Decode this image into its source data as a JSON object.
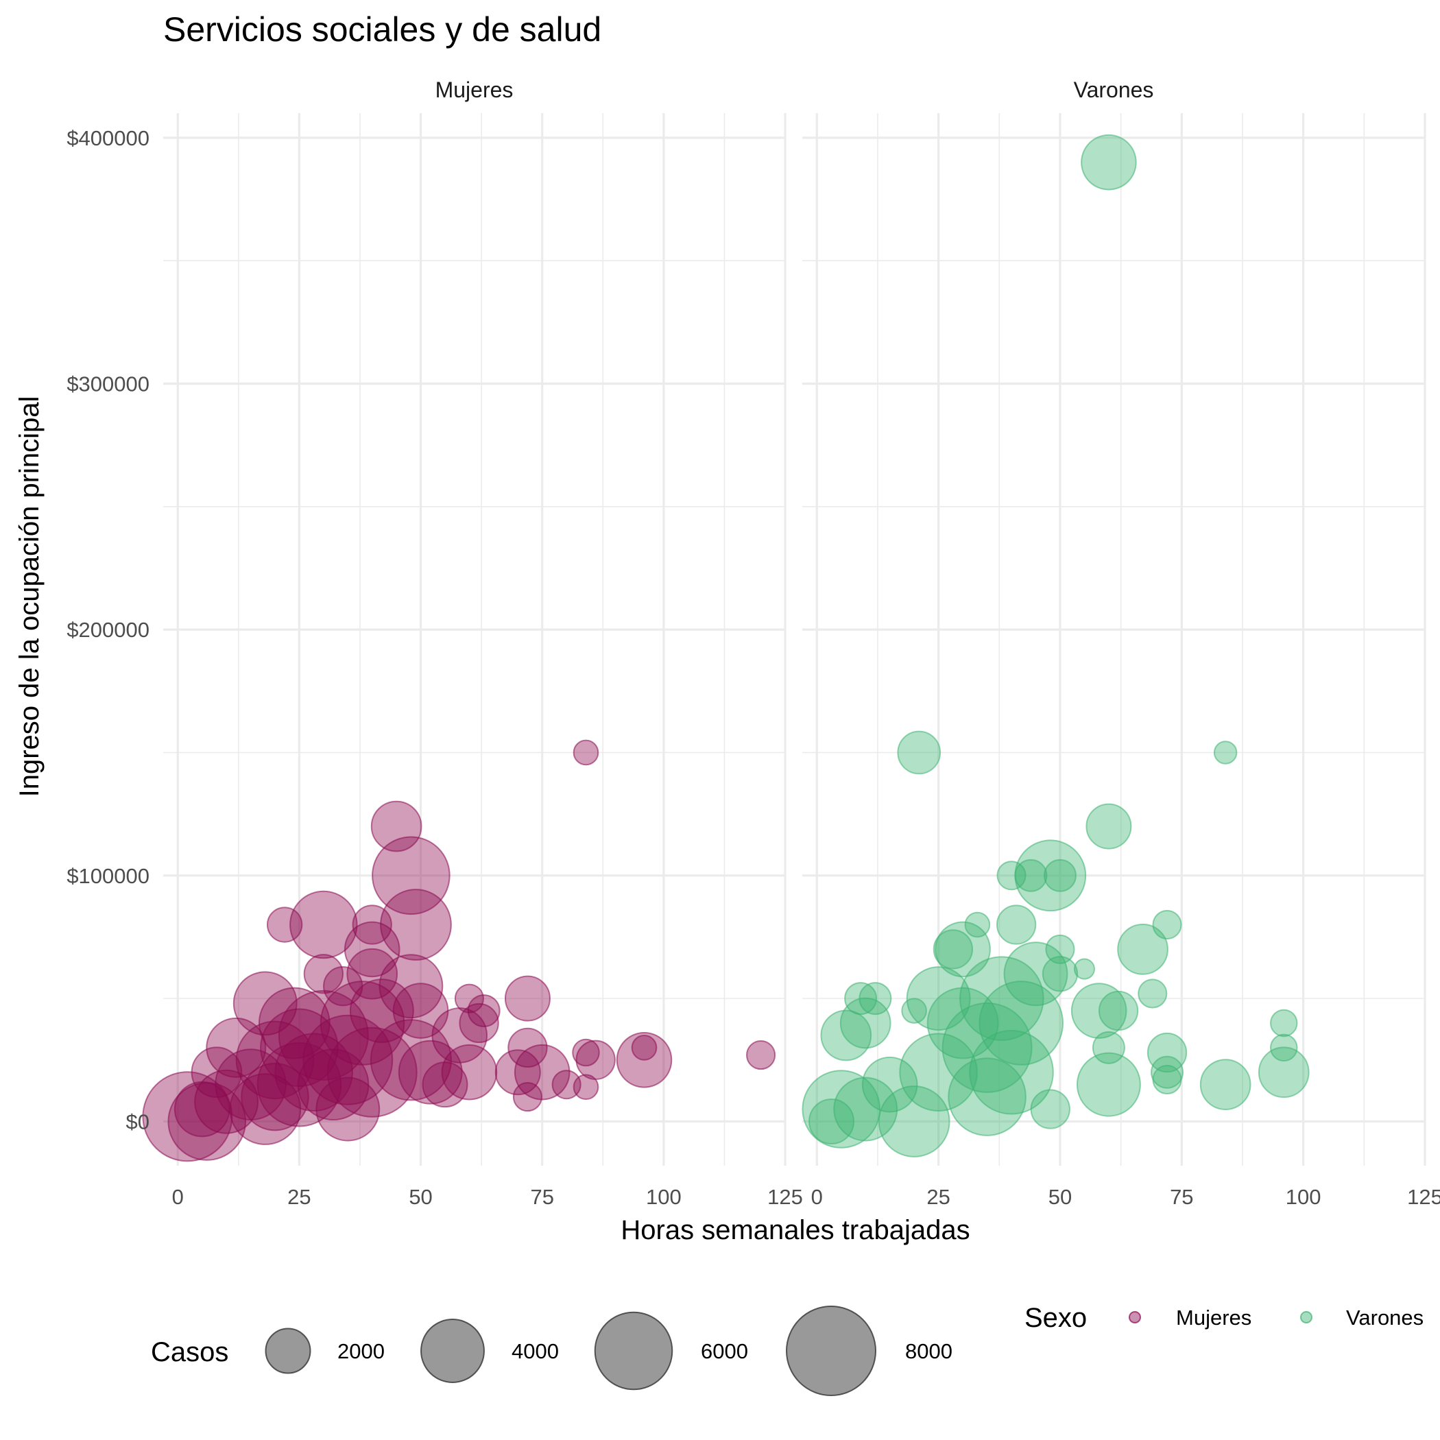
{
  "chart_data": {
    "type": "scatter",
    "title": "Servicios sociales y de salud",
    "xlabel": "Horas semanales trabajadas",
    "ylabel": "Ingreso de la ocupación principal",
    "x_ticks": [
      0,
      25,
      50,
      75,
      100,
      125
    ],
    "y_ticks": [
      0,
      100000,
      200000,
      300000,
      400000
    ],
    "y_tick_labels": [
      "$0",
      "$100000",
      "$200000",
      "$300000",
      "$400000"
    ],
    "xlim": [
      -3,
      125
    ],
    "ylim": [
      -18000,
      410000
    ],
    "grid": true,
    "facets": [
      "Mujeres",
      "Varones"
    ],
    "size_legend": {
      "title": "Casos",
      "breaks": [
        2000,
        4000,
        6000,
        8000
      ],
      "labels": [
        "2000",
        "4000",
        "6000",
        "8000"
      ]
    },
    "color_legend": {
      "title": "Sexo",
      "entries": [
        {
          "label": "Mujeres",
          "color": "#8B0A50"
        },
        {
          "label": "Varones",
          "color": "#3CB371"
        }
      ]
    },
    "series": [
      {
        "name": "Mujeres",
        "facet": "Mujeres",
        "color": "#8B0A50",
        "points": [
          {
            "x": 2,
            "y": 2000,
            "size": 8000
          },
          {
            "x": 6,
            "y": 0,
            "size": 6000
          },
          {
            "x": 5,
            "y": 5000,
            "size": 3000
          },
          {
            "x": 8,
            "y": 20000,
            "size": 2500
          },
          {
            "x": 10,
            "y": 8000,
            "size": 4000
          },
          {
            "x": 12,
            "y": 30000,
            "size": 3500
          },
          {
            "x": 15,
            "y": 15000,
            "size": 5000
          },
          {
            "x": 18,
            "y": 48000,
            "size": 4000
          },
          {
            "x": 18,
            "y": 5000,
            "size": 5000
          },
          {
            "x": 20,
            "y": 25000,
            "size": 6000
          },
          {
            "x": 20,
            "y": 10000,
            "size": 4500
          },
          {
            "x": 22,
            "y": 80000,
            "size": 1200
          },
          {
            "x": 24,
            "y": 40000,
            "size": 5000
          },
          {
            "x": 25,
            "y": 15000,
            "size": 7000
          },
          {
            "x": 25,
            "y": 30000,
            "size": 6000
          },
          {
            "x": 28,
            "y": 20000,
            "size": 6000
          },
          {
            "x": 30,
            "y": 80000,
            "size": 4500
          },
          {
            "x": 30,
            "y": 60000,
            "size": 1500
          },
          {
            "x": 30,
            "y": 35000,
            "size": 8000
          },
          {
            "x": 32,
            "y": 15000,
            "size": 5000
          },
          {
            "x": 34,
            "y": 55000,
            "size": 1500
          },
          {
            "x": 35,
            "y": 25000,
            "size": 8000
          },
          {
            "x": 35,
            "y": 5000,
            "size": 4000
          },
          {
            "x": 38,
            "y": 40000,
            "size": 7000
          },
          {
            "x": 40,
            "y": 80000,
            "size": 1500
          },
          {
            "x": 40,
            "y": 70000,
            "size": 3000
          },
          {
            "x": 40,
            "y": 60000,
            "size": 2500
          },
          {
            "x": 40,
            "y": 20000,
            "size": 8000
          },
          {
            "x": 42,
            "y": 45000,
            "size": 4000
          },
          {
            "x": 45,
            "y": 120000,
            "size": 2500
          },
          {
            "x": 48,
            "y": 100000,
            "size": 6000
          },
          {
            "x": 48,
            "y": 55000,
            "size": 4000
          },
          {
            "x": 49,
            "y": 80000,
            "size": 5000
          },
          {
            "x": 48,
            "y": 25000,
            "size": 6500
          },
          {
            "x": 50,
            "y": 45000,
            "size": 3000
          },
          {
            "x": 52,
            "y": 20000,
            "size": 4000
          },
          {
            "x": 55,
            "y": 15000,
            "size": 2000
          },
          {
            "x": 58,
            "y": 35000,
            "size": 3000
          },
          {
            "x": 60,
            "y": 50000,
            "size": 800
          },
          {
            "x": 60,
            "y": 20000,
            "size": 3000
          },
          {
            "x": 62,
            "y": 40000,
            "size": 1500
          },
          {
            "x": 63,
            "y": 45000,
            "size": 1000
          },
          {
            "x": 72,
            "y": 50000,
            "size": 2000
          },
          {
            "x": 72,
            "y": 30000,
            "size": 1500
          },
          {
            "x": 72,
            "y": 10000,
            "size": 800
          },
          {
            "x": 70,
            "y": 20000,
            "size": 2000
          },
          {
            "x": 75,
            "y": 20000,
            "size": 3000
          },
          {
            "x": 80,
            "y": 15000,
            "size": 800
          },
          {
            "x": 84,
            "y": 150000,
            "size": 600
          },
          {
            "x": 84,
            "y": 28000,
            "size": 700
          },
          {
            "x": 84,
            "y": 14000,
            "size": 600
          },
          {
            "x": 86,
            "y": 25000,
            "size": 1500
          },
          {
            "x": 96,
            "y": 25000,
            "size": 3000
          },
          {
            "x": 96,
            "y": 30000,
            "size": 600
          },
          {
            "x": 120,
            "y": 27000,
            "size": 800
          }
        ]
      },
      {
        "name": "Varones",
        "facet": "Varones",
        "color": "#3CB371",
        "points": [
          {
            "x": 5,
            "y": 5000,
            "size": 6000
          },
          {
            "x": 3,
            "y": 0,
            "size": 2000
          },
          {
            "x": 6,
            "y": 35000,
            "size": 2500
          },
          {
            "x": 9,
            "y": 50000,
            "size": 1000
          },
          {
            "x": 10,
            "y": 40000,
            "size": 2500
          },
          {
            "x": 12,
            "y": 50000,
            "size": 1000
          },
          {
            "x": 10,
            "y": 5000,
            "size": 4000
          },
          {
            "x": 15,
            "y": 15000,
            "size": 3000
          },
          {
            "x": 20,
            "y": 0,
            "size": 5000
          },
          {
            "x": 21,
            "y": 150000,
            "size": 1800
          },
          {
            "x": 20,
            "y": 45000,
            "size": 600
          },
          {
            "x": 25,
            "y": 50000,
            "size": 4000
          },
          {
            "x": 25,
            "y": 20000,
            "size": 6000
          },
          {
            "x": 28,
            "y": 70000,
            "size": 1500
          },
          {
            "x": 30,
            "y": 70000,
            "size": 3000
          },
          {
            "x": 30,
            "y": 40000,
            "size": 5000
          },
          {
            "x": 33,
            "y": 80000,
            "size": 600
          },
          {
            "x": 35,
            "y": 10000,
            "size": 6000
          },
          {
            "x": 35,
            "y": 30000,
            "size": 8000
          },
          {
            "x": 38,
            "y": 50000,
            "size": 7000
          },
          {
            "x": 40,
            "y": 100000,
            "size": 800
          },
          {
            "x": 41,
            "y": 80000,
            "size": 1500
          },
          {
            "x": 40,
            "y": 20000,
            "size": 7000
          },
          {
            "x": 42,
            "y": 40000,
            "size": 7000
          },
          {
            "x": 44,
            "y": 100000,
            "size": 1000
          },
          {
            "x": 48,
            "y": 100000,
            "size": 5000
          },
          {
            "x": 50,
            "y": 100000,
            "size": 1000
          },
          {
            "x": 45,
            "y": 60000,
            "size": 4000
          },
          {
            "x": 50,
            "y": 70000,
            "size": 800
          },
          {
            "x": 50,
            "y": 60000,
            "size": 1200
          },
          {
            "x": 48,
            "y": 5000,
            "size": 1500
          },
          {
            "x": 55,
            "y": 62000,
            "size": 400
          },
          {
            "x": 58,
            "y": 45000,
            "size": 3000
          },
          {
            "x": 60,
            "y": 15000,
            "size": 4000
          },
          {
            "x": 60,
            "y": 390000,
            "size": 3000
          },
          {
            "x": 60,
            "y": 120000,
            "size": 2000
          },
          {
            "x": 60,
            "y": 30000,
            "size": 1000
          },
          {
            "x": 62,
            "y": 45000,
            "size": 1500
          },
          {
            "x": 67,
            "y": 70000,
            "size": 2500
          },
          {
            "x": 69,
            "y": 52000,
            "size": 800
          },
          {
            "x": 72,
            "y": 80000,
            "size": 800
          },
          {
            "x": 72,
            "y": 28000,
            "size": 1500
          },
          {
            "x": 72,
            "y": 20000,
            "size": 1000
          },
          {
            "x": 72,
            "y": 17000,
            "size": 800
          },
          {
            "x": 84,
            "y": 150000,
            "size": 500
          },
          {
            "x": 84,
            "y": 15000,
            "size": 2500
          },
          {
            "x": 96,
            "y": 40000,
            "size": 700
          },
          {
            "x": 96,
            "y": 30000,
            "size": 700
          },
          {
            "x": 96,
            "y": 20000,
            "size": 2500
          }
        ]
      }
    ]
  }
}
